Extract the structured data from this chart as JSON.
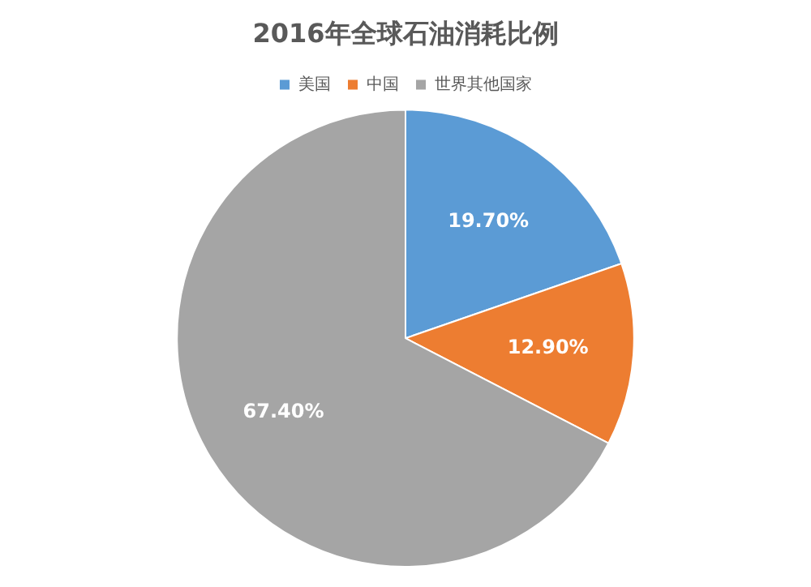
{
  "chart_data": {
    "type": "pie",
    "title": "2016年全球石油消耗比例",
    "categories": [
      "美国",
      "中国",
      "世界其他国家"
    ],
    "values": [
      19.7,
      12.9,
      67.4
    ],
    "value_labels": [
      "19.70%",
      "12.90%",
      "67.40%"
    ],
    "colors": [
      "#5b9bd5",
      "#ed7d31",
      "#a5a5a5"
    ],
    "legend": "top"
  }
}
